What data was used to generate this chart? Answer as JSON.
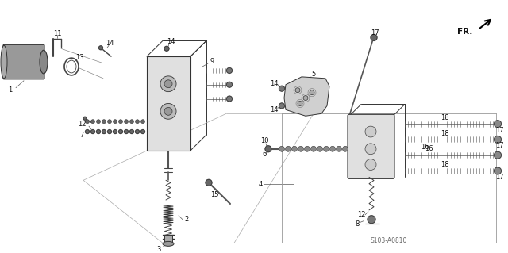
{
  "bg": "#f5f5f5",
  "fg": "#1a1a1a",
  "figsize": [
    6.4,
    3.19
  ],
  "dpi": 100,
  "watermark": "S103-A0810",
  "lw_thin": 0.5,
  "lw_med": 0.8,
  "lw_thick": 1.2,
  "fs_label": 6.0,
  "gray_part": "#888888",
  "gray_light": "#cccccc",
  "gray_dark": "#444444"
}
